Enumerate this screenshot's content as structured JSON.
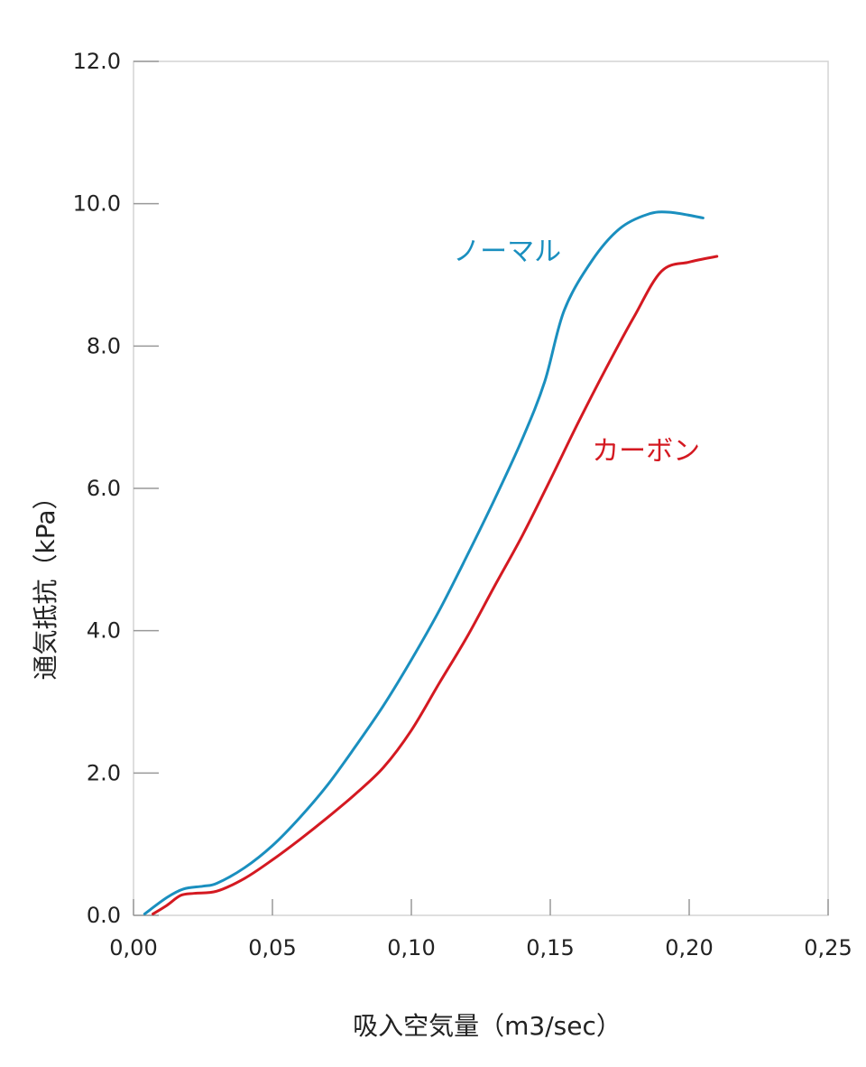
{
  "chart_data": {
    "type": "line",
    "title": "",
    "xlabel": "吸入空気量（m3/sec）",
    "ylabel": "通気抵抗（kPa）",
    "xlim": [
      0,
      0.25
    ],
    "ylim": [
      0,
      12
    ],
    "x_ticks": [
      "0,00",
      "0,05",
      "0,10",
      "0,15",
      "0,20",
      "0,25"
    ],
    "x_tick_values": [
      0,
      0.05,
      0.1,
      0.15,
      0.2,
      0.25
    ],
    "y_ticks": [
      "0.0",
      "2.0",
      "4.0",
      "6.0",
      "8.0",
      "10.0",
      "12.0"
    ],
    "y_tick_values": [
      0,
      2,
      4,
      6,
      8,
      10,
      12
    ],
    "grid": false,
    "series": [
      {
        "name": "ノーマル",
        "color": "#1a8fbf",
        "x": [
          0.004,
          0.012,
          0.018,
          0.025,
          0.03,
          0.04,
          0.05,
          0.06,
          0.07,
          0.08,
          0.09,
          0.1,
          0.11,
          0.12,
          0.13,
          0.14,
          0.148,
          0.155,
          0.165,
          0.175,
          0.185,
          0.193,
          0.205
        ],
        "values": [
          0.02,
          0.25,
          0.37,
          0.41,
          0.45,
          0.67,
          0.98,
          1.38,
          1.84,
          2.38,
          2.95,
          3.59,
          4.28,
          5.05,
          5.85,
          6.7,
          7.5,
          8.5,
          9.2,
          9.65,
          9.85,
          9.88,
          9.8
        ]
      },
      {
        "name": "カーボン",
        "color": "#d41921",
        "x": [
          0.007,
          0.012,
          0.017,
          0.022,
          0.03,
          0.04,
          0.05,
          0.06,
          0.07,
          0.08,
          0.09,
          0.1,
          0.11,
          0.12,
          0.13,
          0.14,
          0.15,
          0.16,
          0.17,
          0.18,
          0.19,
          0.2,
          0.21
        ],
        "values": [
          0.02,
          0.14,
          0.28,
          0.31,
          0.34,
          0.52,
          0.78,
          1.07,
          1.38,
          1.71,
          2.08,
          2.6,
          3.26,
          3.91,
          4.63,
          5.34,
          6.12,
          6.92,
          7.68,
          8.4,
          9.05,
          9.18,
          9.26
        ]
      }
    ],
    "labels": [
      {
        "text": "ノーマル",
        "series": 0,
        "x": 0.115,
        "y": 9.2
      },
      {
        "text": "カーボン",
        "series": 1,
        "x": 0.165,
        "y": 6.4
      }
    ]
  }
}
